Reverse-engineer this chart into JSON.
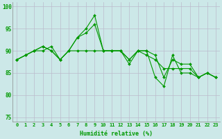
{
  "xlabel": "Humidité relative (%)",
  "xlim": [
    -0.5,
    23.5
  ],
  "ylim": [
    74,
    101
  ],
  "yticks": [
    75,
    80,
    85,
    90,
    95,
    100
  ],
  "xticks": [
    0,
    1,
    2,
    3,
    4,
    5,
    6,
    7,
    8,
    9,
    10,
    11,
    12,
    13,
    14,
    15,
    16,
    17,
    18,
    19,
    20,
    21,
    22,
    23
  ],
  "bg_color": "#cce8e8",
  "grid_color": "#bbbbcc",
  "line_color": "#009900",
  "lines": [
    [
      88,
      89,
      90,
      91,
      90,
      88,
      90,
      93,
      94,
      96,
      90,
      90,
      90,
      88,
      90,
      90,
      89,
      84,
      88,
      87,
      87,
      84,
      85,
      84
    ],
    [
      88,
      89,
      90,
      90,
      91,
      88,
      90,
      93,
      95,
      98,
      90,
      90,
      90,
      87,
      90,
      90,
      84,
      82,
      89,
      85,
      85,
      84,
      85,
      84
    ],
    [
      88,
      89,
      90,
      91,
      90,
      88,
      90,
      90,
      90,
      90,
      90,
      90,
      90,
      88,
      90,
      89,
      88,
      86,
      86,
      86,
      86,
      84,
      85,
      84
    ]
  ],
  "tick_fontsize": 5.0,
  "xlabel_fontsize": 6.0,
  "marker_size": 2.0,
  "linewidth": 0.8
}
